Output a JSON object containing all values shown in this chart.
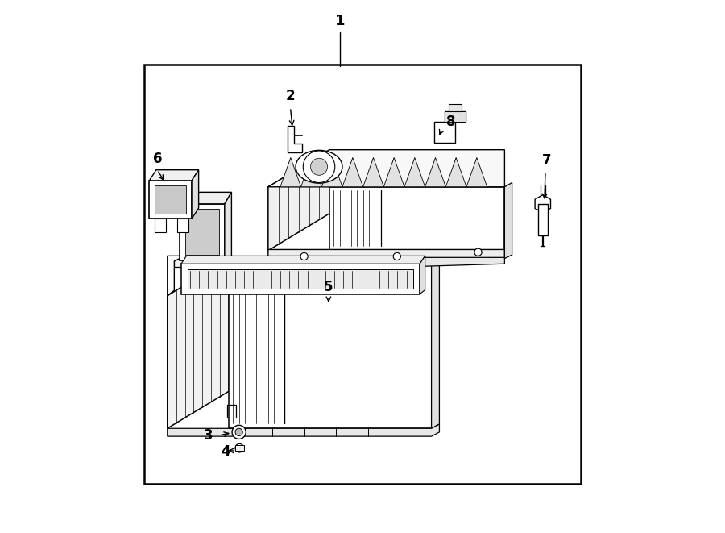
{
  "background_color": "#ffffff",
  "line_color": "#000000",
  "text_color": "#000000",
  "fig_width": 9.0,
  "fig_height": 6.61,
  "dpi": 100,
  "border": [
    0.088,
    0.09,
    0.912,
    0.88
  ]
}
